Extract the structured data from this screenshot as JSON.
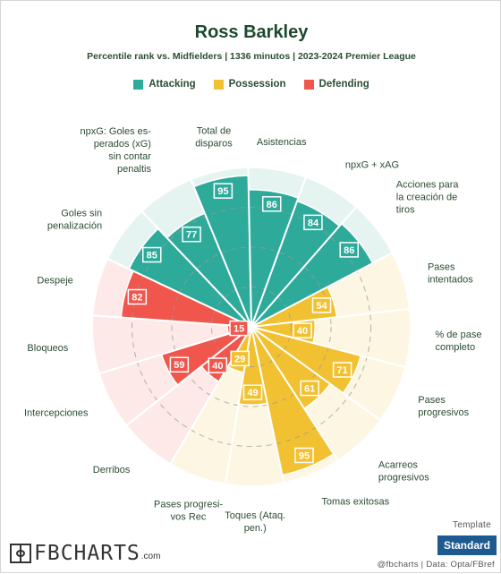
{
  "header": {
    "title": "Ross Barkley",
    "subtitle": "Percentile rank vs. Midfielders | 1336 minutos | 2023-2024 Premier League"
  },
  "legend": [
    {
      "label": "Attacking",
      "color": "#2eaa9b"
    },
    {
      "label": "Possession",
      "color": "#f2c132"
    },
    {
      "label": "Defending",
      "color": "#f0564c"
    }
  ],
  "chart_data": {
    "type": "polar-bar",
    "title": "Ross Barkley",
    "subtitle": "Percentile rank vs. Midfielders | 1336 minutos | 2023-2024 Premier League",
    "rlim": [
      0,
      100
    ],
    "categories": [
      "npxG + xAG",
      "Acciones para la creación de tiros",
      "Pases intentados",
      "% de pase completo",
      "Pases progresivos",
      "Acarreos progresivos",
      "Tomas exitosas",
      "Toques (Ataq. pen.)",
      "Pases progresi- vos Rec",
      "Derribos",
      "Intercepciones",
      "Bloqueos",
      "Despeje",
      "Goles sin penalización",
      "npxG: Goles es- perados (xG) sin contar penaltis",
      "Total de disparos",
      "Asistencias"
    ],
    "values": [
      84,
      86,
      54,
      40,
      71,
      61,
      95,
      49,
      29,
      40,
      59,
      15,
      82,
      85,
      77,
      95,
      86
    ],
    "groups": [
      "Attacking",
      "Attacking",
      "Possession",
      "Possession",
      "Possession",
      "Possession",
      "Possession",
      "Possession",
      "Possession",
      "Defending",
      "Defending",
      "Defending",
      "Defending",
      "Attacking",
      "Attacking",
      "Attacking",
      "Attacking"
    ],
    "group_colors": {
      "Attacking": "#2eaa9b",
      "Possession": "#f2c132",
      "Defending": "#f0564c"
    },
    "background_colors": {
      "Attacking": "#e6f4f1",
      "Possession": "#fdf6e2",
      "Defending": "#fde9e8"
    },
    "grid": "dashed rings at 25/50/75"
  },
  "footer": {
    "brand": "FBCHARTS",
    "brand_suffix": ".com",
    "template_label": "Template",
    "template_value": "Standard",
    "credit": "@fbcharts | Data: Opta/FBref"
  }
}
